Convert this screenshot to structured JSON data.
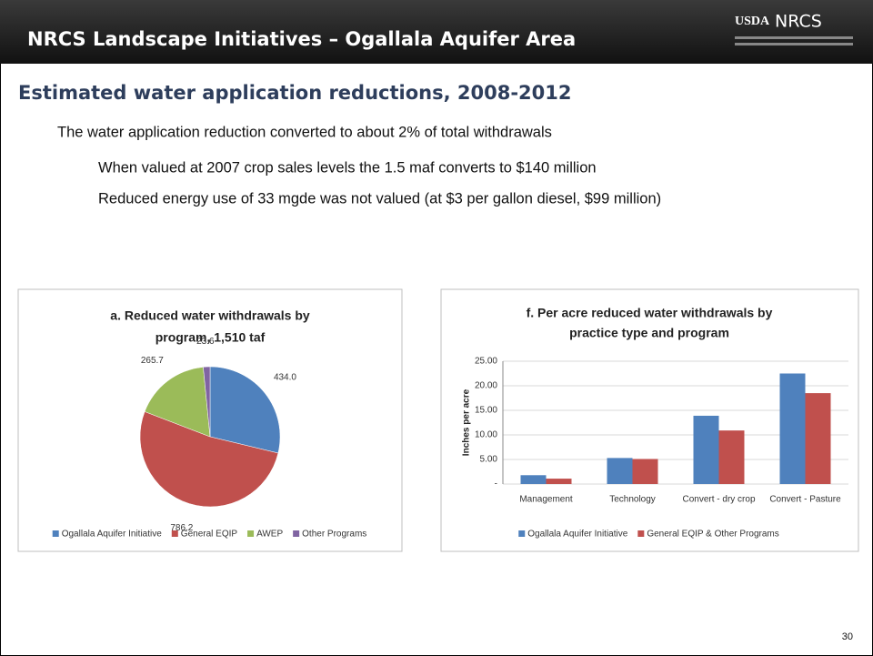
{
  "header": {
    "title": "NRCS Landscape Initiatives – Ogallala Aquifer Area",
    "logo": [
      "USDA",
      "NRCS"
    ]
  },
  "subtitle": "Estimated water application reductions, 2008-2012",
  "bullets": [
    "The water application reduction converted to about 2% of total withdrawals",
    "When valued at 2007 crop sales levels the 1.5 maf converts to $140 million",
    "Reduced energy use of 33 mgde was not valued (at $3 per gallon diesel, $99 million)"
  ],
  "page_number": "30",
  "chart_data": [
    {
      "type": "pie",
      "title": [
        "a. Reduced water withdrawals by",
        "program, 1,510 taf"
      ],
      "categories": [
        "Ogallala Aquifer Initiative",
        "General EQIP",
        "AWEP",
        "Other Programs"
      ],
      "values": [
        434.0,
        786.2,
        265.7,
        23.6
      ],
      "value_labels": [
        "434.0",
        "786.2",
        "265.7",
        "23.6"
      ],
      "colors": [
        "#4f81bd",
        "#c0504d",
        "#9bbb59",
        "#8064a2"
      ],
      "legend": "bottom"
    },
    {
      "type": "bar",
      "title": [
        "f. Per acre reduced water withdrawals by",
        "practice type and program"
      ],
      "y_label": "Inches per acre",
      "categories": [
        "Management",
        "Technology",
        "Convert - dry crop",
        "Convert - Pasture"
      ],
      "series": [
        {
          "name": "Ogallala Aquifer Initiative",
          "color": "#4f81bd",
          "values": [
            1.8,
            5.3,
            13.9,
            22.5
          ]
        },
        {
          "name": "General EQIP & Other Programs",
          "color": "#c0504d",
          "values": [
            1.1,
            5.1,
            10.9,
            18.5
          ]
        }
      ],
      "ylim": [
        0,
        25
      ],
      "yticks": [
        {
          "value": 0,
          "label": "-"
        },
        {
          "value": 5,
          "label": "5.00"
        },
        {
          "value": 10,
          "label": "10.00"
        },
        {
          "value": 15,
          "label": "15.00"
        },
        {
          "value": 20,
          "label": "20.00"
        },
        {
          "value": 25,
          "label": "25.00"
        }
      ],
      "grid": true,
      "legend": "bottom"
    }
  ]
}
